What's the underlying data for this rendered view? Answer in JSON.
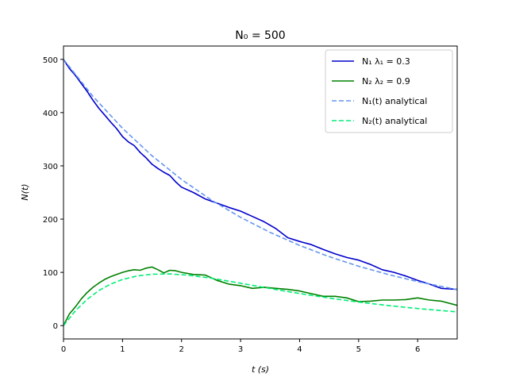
{
  "chart_data": {
    "type": "line",
    "title": "N₀ = 500",
    "xlabel": "t (s)",
    "ylabel": "N(t)",
    "xlim": [
      0,
      6.67
    ],
    "ylim": [
      -25,
      525
    ],
    "xticks": [
      0,
      1,
      2,
      3,
      4,
      5,
      6
    ],
    "yticks": [
      0,
      100,
      200,
      300,
      400,
      500
    ],
    "grid": false,
    "legend_position": "top-right",
    "series": [
      {
        "name": "N₁ λ₁ = 0.3",
        "style": "solid",
        "color": "#0000cc",
        "x": [
          0,
          0.1,
          0.2,
          0.3,
          0.4,
          0.5,
          0.6,
          0.7,
          0.8,
          0.9,
          1.0,
          1.1,
          1.2,
          1.3,
          1.4,
          1.5,
          1.6,
          1.7,
          1.8,
          1.9,
          2.0,
          2.2,
          2.4,
          2.6,
          2.8,
          3.0,
          3.2,
          3.4,
          3.6,
          3.8,
          4.0,
          4.2,
          4.4,
          4.6,
          4.8,
          5.0,
          5.2,
          5.4,
          5.6,
          5.8,
          6.0,
          6.2,
          6.4,
          6.67
        ],
        "y": [
          500,
          483,
          470,
          455,
          440,
          423,
          408,
          395,
          382,
          370,
          355,
          345,
          338,
          325,
          315,
          303,
          295,
          288,
          282,
          270,
          260,
          250,
          238,
          230,
          222,
          215,
          205,
          195,
          182,
          165,
          158,
          152,
          143,
          135,
          128,
          123,
          115,
          105,
          100,
          93,
          85,
          78,
          70,
          68
        ]
      },
      {
        "name": "N₂ λ₂ = 0.9",
        "style": "solid",
        "color": "#008000",
        "x": [
          0,
          0.1,
          0.2,
          0.3,
          0.4,
          0.5,
          0.6,
          0.7,
          0.8,
          0.9,
          1.0,
          1.1,
          1.2,
          1.3,
          1.4,
          1.5,
          1.6,
          1.7,
          1.8,
          1.9,
          2.0,
          2.2,
          2.4,
          2.6,
          2.8,
          3.0,
          3.2,
          3.4,
          3.6,
          3.8,
          4.0,
          4.2,
          4.4,
          4.6,
          4.8,
          5.0,
          5.2,
          5.4,
          5.6,
          5.8,
          6.0,
          6.2,
          6.4,
          6.67
        ],
        "y": [
          0,
          22,
          35,
          50,
          62,
          72,
          80,
          87,
          92,
          96,
          100,
          103,
          105,
          104,
          108,
          110,
          105,
          99,
          104,
          103,
          100,
          96,
          95,
          85,
          78,
          75,
          70,
          72,
          70,
          68,
          65,
          60,
          55,
          55,
          52,
          45,
          46,
          48,
          48,
          49,
          52,
          48,
          46,
          38
        ]
      },
      {
        "name": "N₁(t) analytical",
        "style": "dashed",
        "color": "#6495ed",
        "x": [
          0,
          0.5,
          1.0,
          1.5,
          2.0,
          2.5,
          3.0,
          3.5,
          4.0,
          4.5,
          5.0,
          5.5,
          6.0,
          6.67
        ],
        "y": [
          500,
          430.4,
          370.4,
          318.8,
          274.4,
          236.2,
          203.3,
          175.0,
          150.6,
          129.6,
          111.6,
          96.0,
          82.6,
          67.6
        ]
      },
      {
        "name": "N₂(t) analytical",
        "style": "dashed",
        "color": "#00ee76",
        "x": [
          0,
          0.2,
          0.4,
          0.6,
          0.8,
          1.0,
          1.25,
          1.5,
          1.8,
          2.1,
          2.5,
          3.0,
          3.5,
          4.0,
          4.5,
          5.0,
          5.5,
          6.0,
          6.67
        ],
        "y": [
          0,
          27.6,
          49.3,
          65.9,
          78.1,
          86.6,
          93.3,
          96.5,
          97.1,
          94.9,
          89.2,
          79.6,
          69.6,
          60.2,
          51.7,
          44.2,
          37.8,
          32.1,
          25.9
        ]
      }
    ]
  }
}
